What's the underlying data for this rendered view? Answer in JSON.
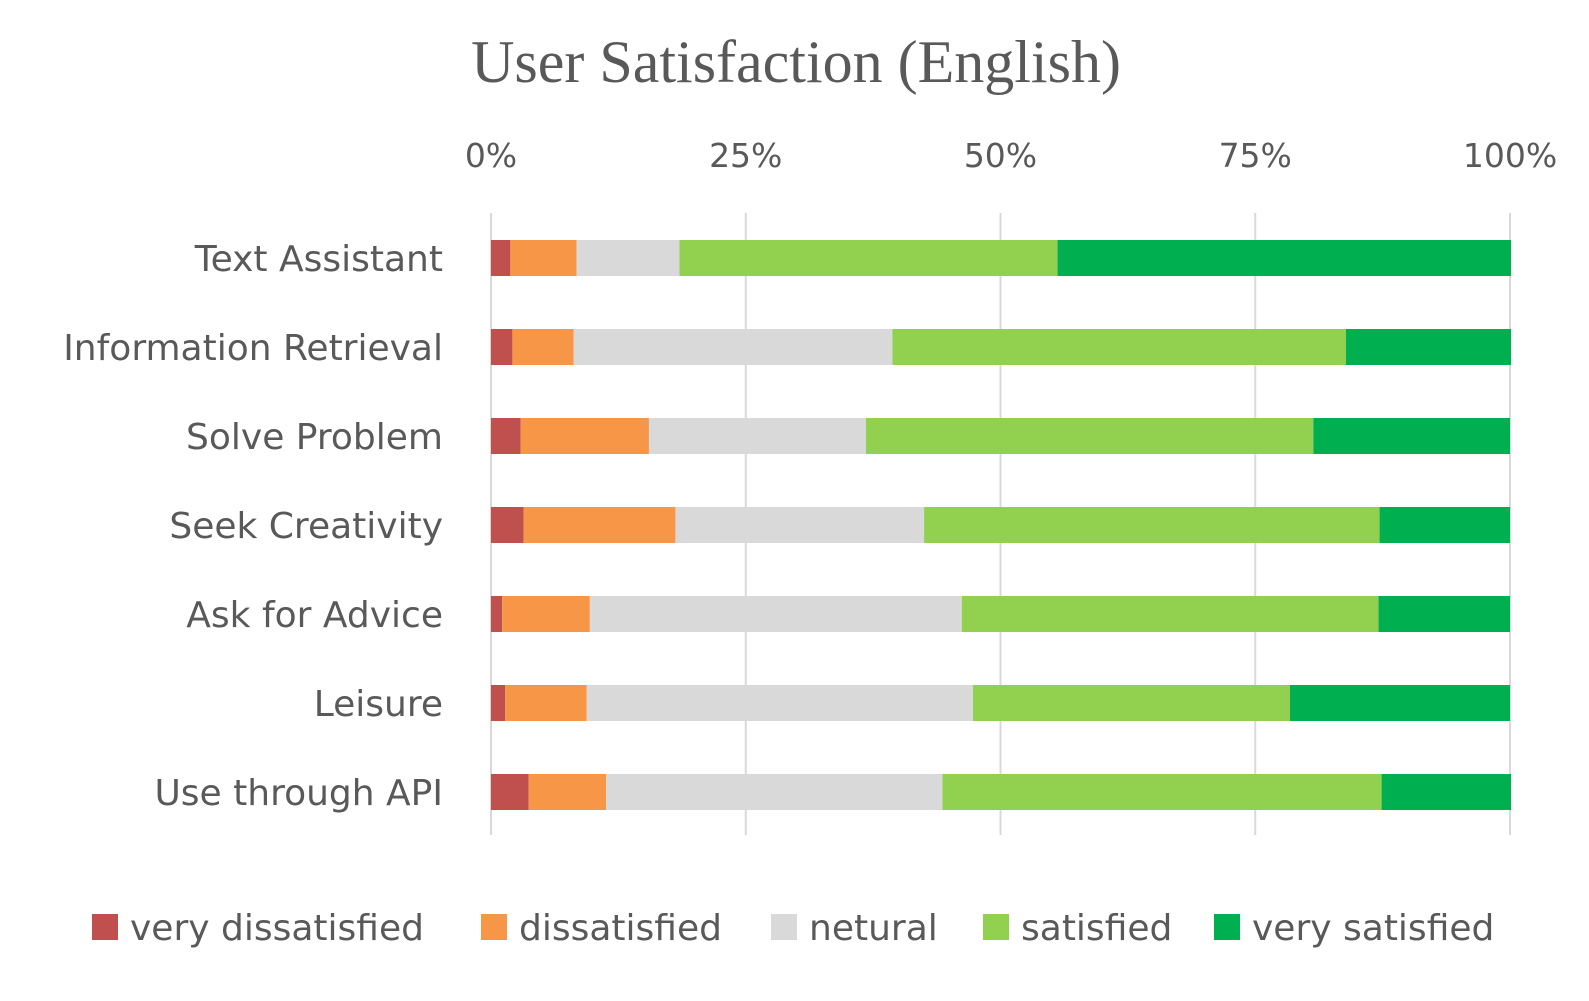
{
  "chart_data": {
    "type": "bar",
    "orientation": "horizontal",
    "stacked": "percent",
    "title": "User Satisfaction (English)",
    "xlabel": "",
    "ylabel": "",
    "xlim": [
      0,
      100
    ],
    "x_ticks": [
      "0%",
      "25%",
      "50%",
      "75%",
      "100%"
    ],
    "x_axis_position": "top",
    "grid": true,
    "legend_position": "bottom",
    "categories": [
      "Text Assistant",
      "Information Retrieval",
      "Solve Problem",
      "Seek Creativity",
      "Ask for Advice",
      "Leisure",
      "Use through API"
    ],
    "series": [
      {
        "name": "very dissatisfied",
        "color": "#C0504D",
        "values": [
          1.9,
          2.1,
          2.9,
          3.2,
          1.1,
          1.4,
          3.7
        ]
      },
      {
        "name": "dissatisfied",
        "color": "#F79646",
        "values": [
          6.5,
          6.0,
          12.6,
          14.9,
          8.6,
          8.0,
          7.6
        ]
      },
      {
        "name": "netural",
        "color": "#D9D9D9",
        "values": [
          10.1,
          31.3,
          21.3,
          24.4,
          36.5,
          37.9,
          33.0
        ]
      },
      {
        "name": "satisfied",
        "color": "#92D050",
        "values": [
          37.1,
          44.5,
          43.9,
          44.7,
          40.9,
          31.1,
          43.1
        ]
      },
      {
        "name": "very satisfied",
        "color": "#00B050",
        "values": [
          44.5,
          16.2,
          19.3,
          12.8,
          12.9,
          21.6,
          12.7
        ]
      }
    ]
  }
}
